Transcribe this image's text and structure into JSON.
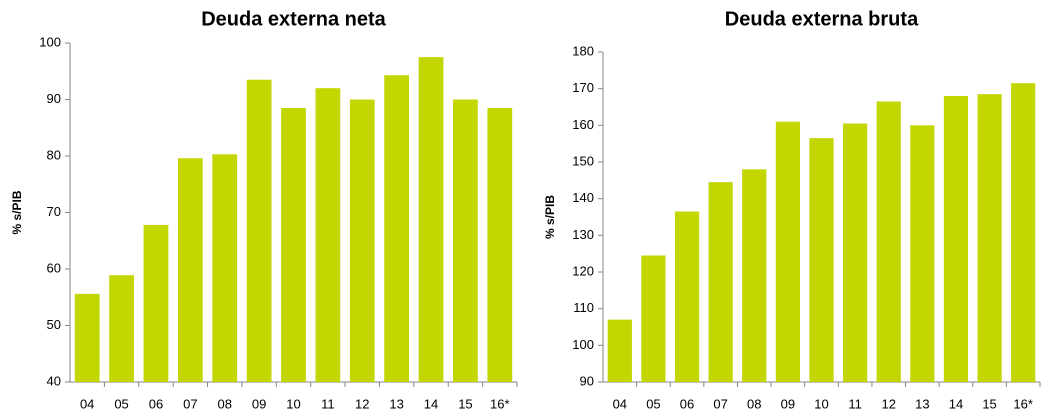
{
  "chart_data": [
    {
      "type": "bar",
      "title": "Deuda externa neta",
      "y_label": "% s/PIB",
      "categories": [
        "04",
        "05",
        "06",
        "07",
        "08",
        "09",
        "10",
        "11",
        "12",
        "13",
        "14",
        "15",
        "16*"
      ],
      "values": [
        55.6,
        58.9,
        67.8,
        79.6,
        80.3,
        93.5,
        88.5,
        92,
        90,
        94.3,
        97.5,
        90,
        88.5
      ],
      "color": "#c3d600",
      "ylim": [
        40,
        100
      ],
      "yticks": [
        40,
        50,
        60,
        70,
        80,
        90,
        100
      ],
      "grid": false
    },
    {
      "type": "bar",
      "title": "Deuda externa bruta",
      "y_label": "% s/PIB",
      "categories": [
        "04",
        "05",
        "06",
        "07",
        "08",
        "09",
        "10",
        "11",
        "12",
        "13",
        "14",
        "15",
        "16*"
      ],
      "values": [
        107,
        124.5,
        136.5,
        144.5,
        148,
        161,
        156.5,
        160.5,
        166.5,
        160,
        168,
        168.5,
        171.5
      ],
      "color": "#c3d600",
      "ylim": [
        90,
        180
      ],
      "yticks": [
        90,
        100,
        110,
        120,
        130,
        140,
        150,
        160,
        170,
        180
      ],
      "grid": false
    }
  ]
}
